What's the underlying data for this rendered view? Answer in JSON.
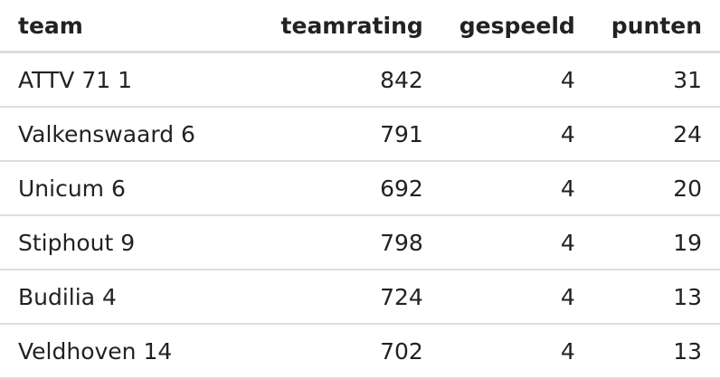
{
  "table": {
    "header": [
      "team",
      "teamrating",
      "gespeeld",
      "punten"
    ],
    "rows": [
      [
        "ATTV 71 1",
        "842",
        "4",
        "31"
      ],
      [
        "Valkenswaard 6",
        "791",
        "4",
        "24"
      ],
      [
        "Unicum 6",
        "692",
        "4",
        "20"
      ],
      [
        "Stiphout 9",
        "798",
        "4",
        "19"
      ],
      [
        "Budilia 4",
        "724",
        "4",
        "13"
      ],
      [
        "Veldhoven 14",
        "702",
        "4",
        "13"
      ]
    ]
  }
}
